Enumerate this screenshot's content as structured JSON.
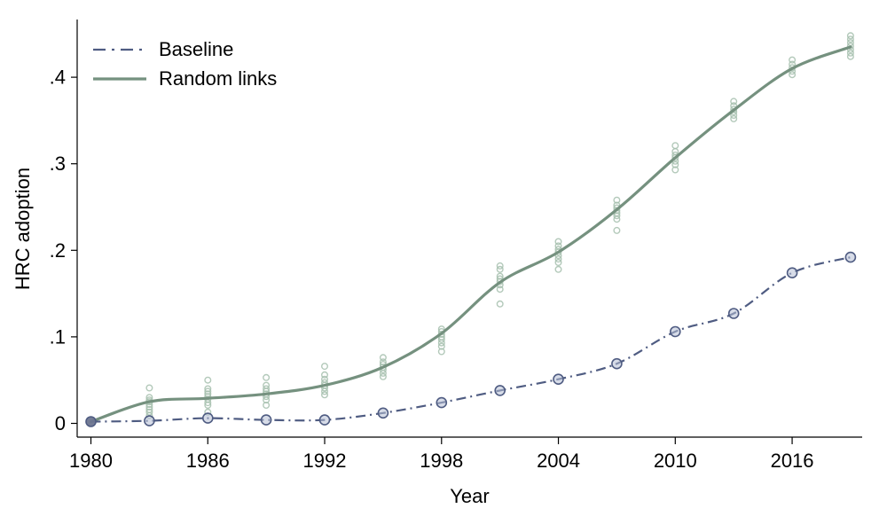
{
  "chart_data": {
    "type": "line",
    "title": "",
    "xlabel": "Year",
    "ylabel": "HRC adoption",
    "x_ticks": [
      1980,
      1986,
      1992,
      1998,
      2004,
      2010,
      2016
    ],
    "y_ticks": [
      0,
      0.1,
      0.2,
      0.3,
      0.4
    ],
    "y_tick_labels": [
      "0",
      ".1",
      ".2",
      ".3",
      ".4"
    ],
    "xlim": [
      1979.3,
      2019.6
    ],
    "ylim": [
      0,
      0.466
    ],
    "grid": false,
    "legend_position": "top-left",
    "x": [
      1980,
      1983,
      1986,
      1989,
      1992,
      1995,
      1998,
      2001,
      2004,
      2007,
      2010,
      2013,
      2016,
      2019
    ],
    "series": [
      {
        "name": "Baseline",
        "style": "dash-dot",
        "color": "#4f5c82",
        "marker": "circle-open",
        "marker_fill": "#b7bfd6",
        "first_marker_fill": "#6d7590",
        "values": [
          0.002,
          0.003,
          0.006,
          0.004,
          0.004,
          0.012,
          0.024,
          0.038,
          0.051,
          0.069,
          0.106,
          0.127,
          0.174,
          0.192
        ]
      },
      {
        "name": "Random links",
        "style": "solid",
        "color": "#75917f",
        "marker": "none",
        "values": [
          0.002,
          0.025,
          0.029,
          0.034,
          0.044,
          0.065,
          0.104,
          0.163,
          0.198,
          0.247,
          0.307,
          0.362,
          0.41,
          0.435
        ]
      }
    ],
    "scatter": {
      "name": "random-links-simulation-draws",
      "color": "#a6bfae",
      "clusters": [
        {
          "x": 1983,
          "values": [
            0.041,
            0.03,
            0.027,
            0.025,
            0.022,
            0.019,
            0.016,
            0.013,
            0.009
          ]
        },
        {
          "x": 1986,
          "values": [
            0.05,
            0.04,
            0.037,
            0.034,
            0.031,
            0.028,
            0.024,
            0.021,
            0.013
          ]
        },
        {
          "x": 1989,
          "values": [
            0.053,
            0.044,
            0.04,
            0.037,
            0.034,
            0.031,
            0.027,
            0.021
          ]
        },
        {
          "x": 1992,
          "values": [
            0.066,
            0.056,
            0.051,
            0.047,
            0.044,
            0.041,
            0.037,
            0.033
          ]
        },
        {
          "x": 1995,
          "values": [
            0.076,
            0.071,
            0.068,
            0.065,
            0.062,
            0.058,
            0.054
          ]
        },
        {
          "x": 1998,
          "values": [
            0.109,
            0.106,
            0.103,
            0.1,
            0.097,
            0.093,
            0.089,
            0.083
          ]
        },
        {
          "x": 2001,
          "values": [
            0.182,
            0.178,
            0.17,
            0.167,
            0.164,
            0.16,
            0.155,
            0.138
          ]
        },
        {
          "x": 2004,
          "values": [
            0.21,
            0.205,
            0.201,
            0.198,
            0.194,
            0.19,
            0.186,
            0.178
          ]
        },
        {
          "x": 2007,
          "values": [
            0.258,
            0.252,
            0.249,
            0.246,
            0.243,
            0.24,
            0.236,
            0.223
          ]
        },
        {
          "x": 2010,
          "values": [
            0.321,
            0.314,
            0.31,
            0.307,
            0.303,
            0.299,
            0.293
          ]
        },
        {
          "x": 2013,
          "values": [
            0.372,
            0.367,
            0.363,
            0.36,
            0.356,
            0.352
          ]
        },
        {
          "x": 2016,
          "values": [
            0.42,
            0.415,
            0.411,
            0.407,
            0.403
          ]
        },
        {
          "x": 2019,
          "values": [
            0.448,
            0.444,
            0.44,
            0.436,
            0.432,
            0.428,
            0.424
          ]
        }
      ]
    },
    "axis_color": "#000000",
    "background": "#ffffff"
  }
}
